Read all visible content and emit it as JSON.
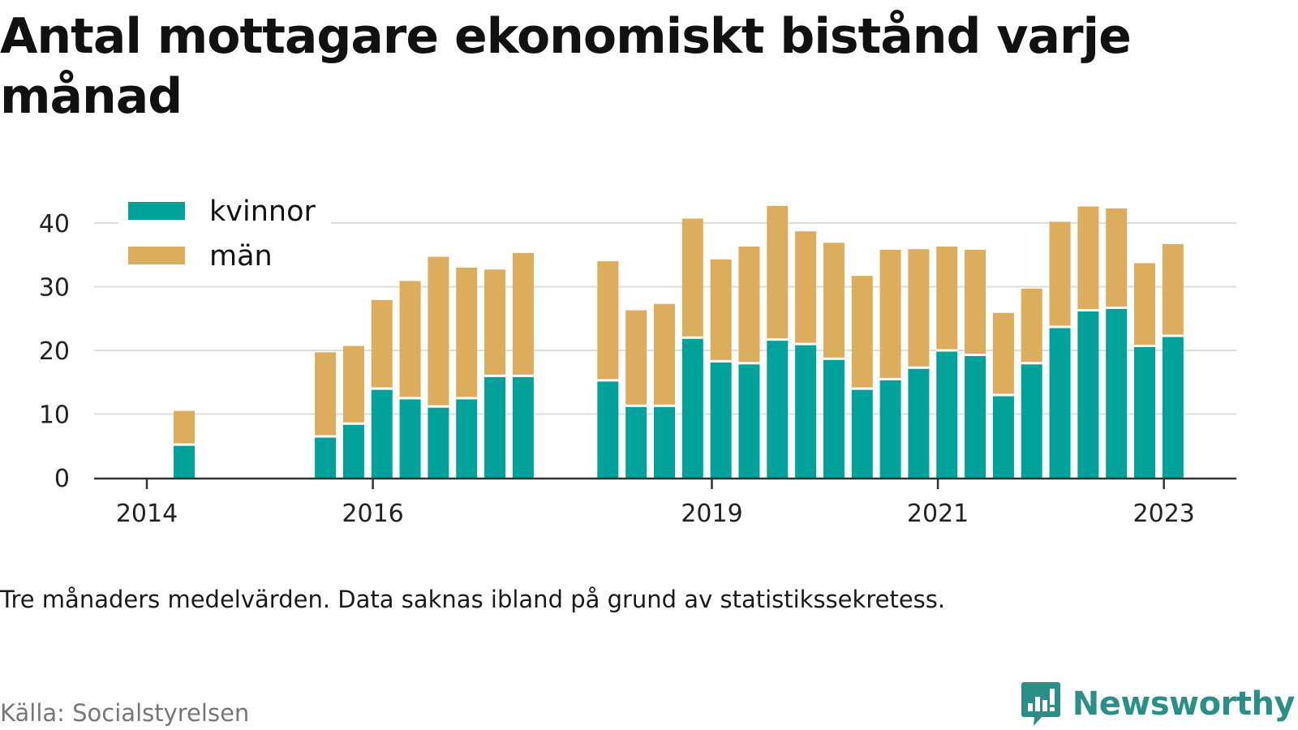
{
  "title": "Antal mottagare ekonomiskt bistånd varje månad",
  "note": "Tre månaders medelvärden. Data saknas ibland på grund av statistikssekretess.",
  "source": "Källa: Socialstyrelsen",
  "brand": {
    "name": "Newsworthy",
    "logo_icon": "chat-bar-chart-icon"
  },
  "colors": {
    "kvinnor": "#00a29a",
    "man": "#dbad5c",
    "grid": "#dddddd",
    "axis": "#333333"
  },
  "chart_data": {
    "type": "bar",
    "stacked": true,
    "title": "Antal mottagare ekonomiskt bistånd varje månad",
    "xlabel": "",
    "ylabel": "",
    "ylim": [
      0,
      45
    ],
    "yticks": [
      0,
      10,
      20,
      30,
      40
    ],
    "xticks": [
      {
        "label": "2014",
        "x": 2014.0
      },
      {
        "label": "2016",
        "x": 2016.0
      },
      {
        "label": "2019",
        "x": 2019.0
      },
      {
        "label": "2021",
        "x": 2021.0
      },
      {
        "label": "2023",
        "x": 2023.0
      }
    ],
    "grid": true,
    "legend": {
      "position": "top-left"
    },
    "x": [
      2014.33,
      2015.58,
      2015.83,
      2016.08,
      2016.33,
      2016.58,
      2016.83,
      2017.08,
      2017.33,
      2018.08,
      2018.33,
      2018.58,
      2018.83,
      2019.08,
      2019.33,
      2019.58,
      2019.83,
      2020.08,
      2020.33,
      2020.58,
      2020.83,
      2021.08,
      2021.33,
      2021.58,
      2021.83,
      2022.08,
      2022.33,
      2022.58,
      2022.83,
      2023.08
    ],
    "series": [
      {
        "name": "kvinnor",
        "values": [
          5.2,
          6.5,
          8.5,
          14,
          12.5,
          11.2,
          12.5,
          16,
          16,
          15.3,
          11.3,
          11.3,
          22,
          18.3,
          18,
          21.7,
          21,
          18.7,
          14,
          15.5,
          17.3,
          20,
          19.3,
          13,
          18,
          23.7,
          26.3,
          26.7,
          20.7,
          22.3
        ]
      },
      {
        "name": "män",
        "values": [
          5.3,
          13.2,
          12.2,
          13.9,
          18.4,
          23.5,
          20.5,
          16.7,
          19.3,
          18.7,
          15,
          16,
          18.7,
          16,
          18.3,
          21,
          17.7,
          18.2,
          17.7,
          20.3,
          18.6,
          16.3,
          16.5,
          12.9,
          11.7,
          16.5,
          16.3,
          15.6,
          13,
          14.4
        ]
      }
    ]
  }
}
